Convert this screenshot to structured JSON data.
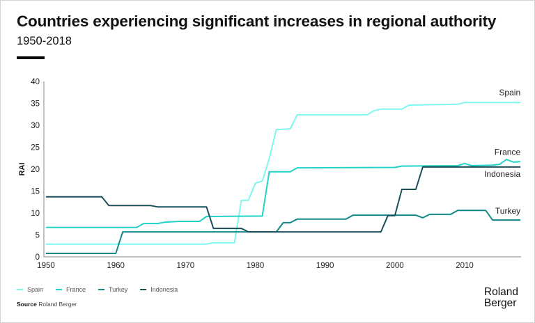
{
  "header": {
    "title": "Countries experiencing significant increases in regional authority",
    "subtitle": "1950-2018"
  },
  "footer": {
    "source_label": "Source",
    "source_text": "Roland Berger",
    "logo_line1": "Roland",
    "logo_line2": "Berger"
  },
  "chart_data": {
    "type": "line",
    "title": "Countries experiencing significant increases in regional authority",
    "subtitle": "1950-2018",
    "xlabel": "",
    "ylabel": "RAI",
    "xlim": [
      1950,
      2018
    ],
    "ylim": [
      0,
      40
    ],
    "x_ticks": [
      1950,
      1960,
      1970,
      1980,
      1990,
      2000,
      2010
    ],
    "y_ticks": [
      0,
      5,
      10,
      15,
      20,
      25,
      30,
      35,
      40
    ],
    "grid": false,
    "legend_position": "bottom-left",
    "series": [
      {
        "name": "Spain",
        "color": "#7ff7ee",
        "end_label": "Spain",
        "points": [
          [
            1950,
            2.9
          ],
          [
            1973,
            2.9
          ],
          [
            1974,
            3.2
          ],
          [
            1977,
            3.2
          ],
          [
            1978,
            12.9
          ],
          [
            1979,
            12.9
          ],
          [
            1980,
            16.8
          ],
          [
            1981,
            17.3
          ],
          [
            1982,
            22.4
          ],
          [
            1983,
            29.0
          ],
          [
            1985,
            29.2
          ],
          [
            1986,
            32.4
          ],
          [
            1996,
            32.4
          ],
          [
            1997,
            33.3
          ],
          [
            1998,
            33.7
          ],
          [
            2001,
            33.7
          ],
          [
            2002,
            34.6
          ],
          [
            2009,
            34.8
          ],
          [
            2010,
            35.2
          ],
          [
            2018,
            35.2
          ]
        ]
      },
      {
        "name": "France",
        "color": "#22d3c5",
        "end_label": "France",
        "points": [
          [
            1950,
            6.7
          ],
          [
            1963,
            6.7
          ],
          [
            1964,
            7.6
          ],
          [
            1966,
            7.6
          ],
          [
            1967,
            7.9
          ],
          [
            1969,
            8.1
          ],
          [
            1972,
            8.1
          ],
          [
            1973,
            9.2
          ],
          [
            1981,
            9.3
          ],
          [
            1982,
            19.4
          ],
          [
            1985,
            19.4
          ],
          [
            1986,
            20.3
          ],
          [
            2000,
            20.4
          ],
          [
            2001,
            20.7
          ],
          [
            2009,
            20.8
          ],
          [
            2010,
            21.3
          ],
          [
            2011,
            20.8
          ],
          [
            2014,
            20.9
          ],
          [
            2015,
            21.1
          ],
          [
            2016,
            22.2
          ],
          [
            2017,
            21.6
          ],
          [
            2018,
            21.7
          ]
        ]
      },
      {
        "name": "Turkey",
        "color": "#13878a",
        "end_label": "Turkey",
        "points": [
          [
            1950,
            0.8
          ],
          [
            1960,
            0.8
          ],
          [
            1961,
            5.7
          ],
          [
            1983,
            5.7
          ],
          [
            1984,
            7.8
          ],
          [
            1985,
            7.8
          ],
          [
            1986,
            8.6
          ],
          [
            1993,
            8.6
          ],
          [
            1994,
            9.5
          ],
          [
            2003,
            9.5
          ],
          [
            2004,
            8.9
          ],
          [
            2005,
            9.7
          ],
          [
            2008,
            9.7
          ],
          [
            2009,
            10.6
          ],
          [
            2013,
            10.6
          ],
          [
            2014,
            8.4
          ],
          [
            2018,
            8.4
          ]
        ]
      },
      {
        "name": "Indonesia",
        "color": "#1a4f5a",
        "end_label": "Indonesia",
        "points": [
          [
            1950,
            13.7
          ],
          [
            1958,
            13.7
          ],
          [
            1959,
            11.7
          ],
          [
            1965,
            11.7
          ],
          [
            1966,
            11.4
          ],
          [
            1973,
            11.4
          ],
          [
            1974,
            6.5
          ],
          [
            1978,
            6.5
          ],
          [
            1979,
            5.7
          ],
          [
            1998,
            5.7
          ],
          [
            1999,
            9.4
          ],
          [
            2000,
            9.4
          ],
          [
            2001,
            15.4
          ],
          [
            2003,
            15.4
          ],
          [
            2004,
            20.5
          ],
          [
            2018,
            20.5
          ]
        ]
      }
    ]
  }
}
